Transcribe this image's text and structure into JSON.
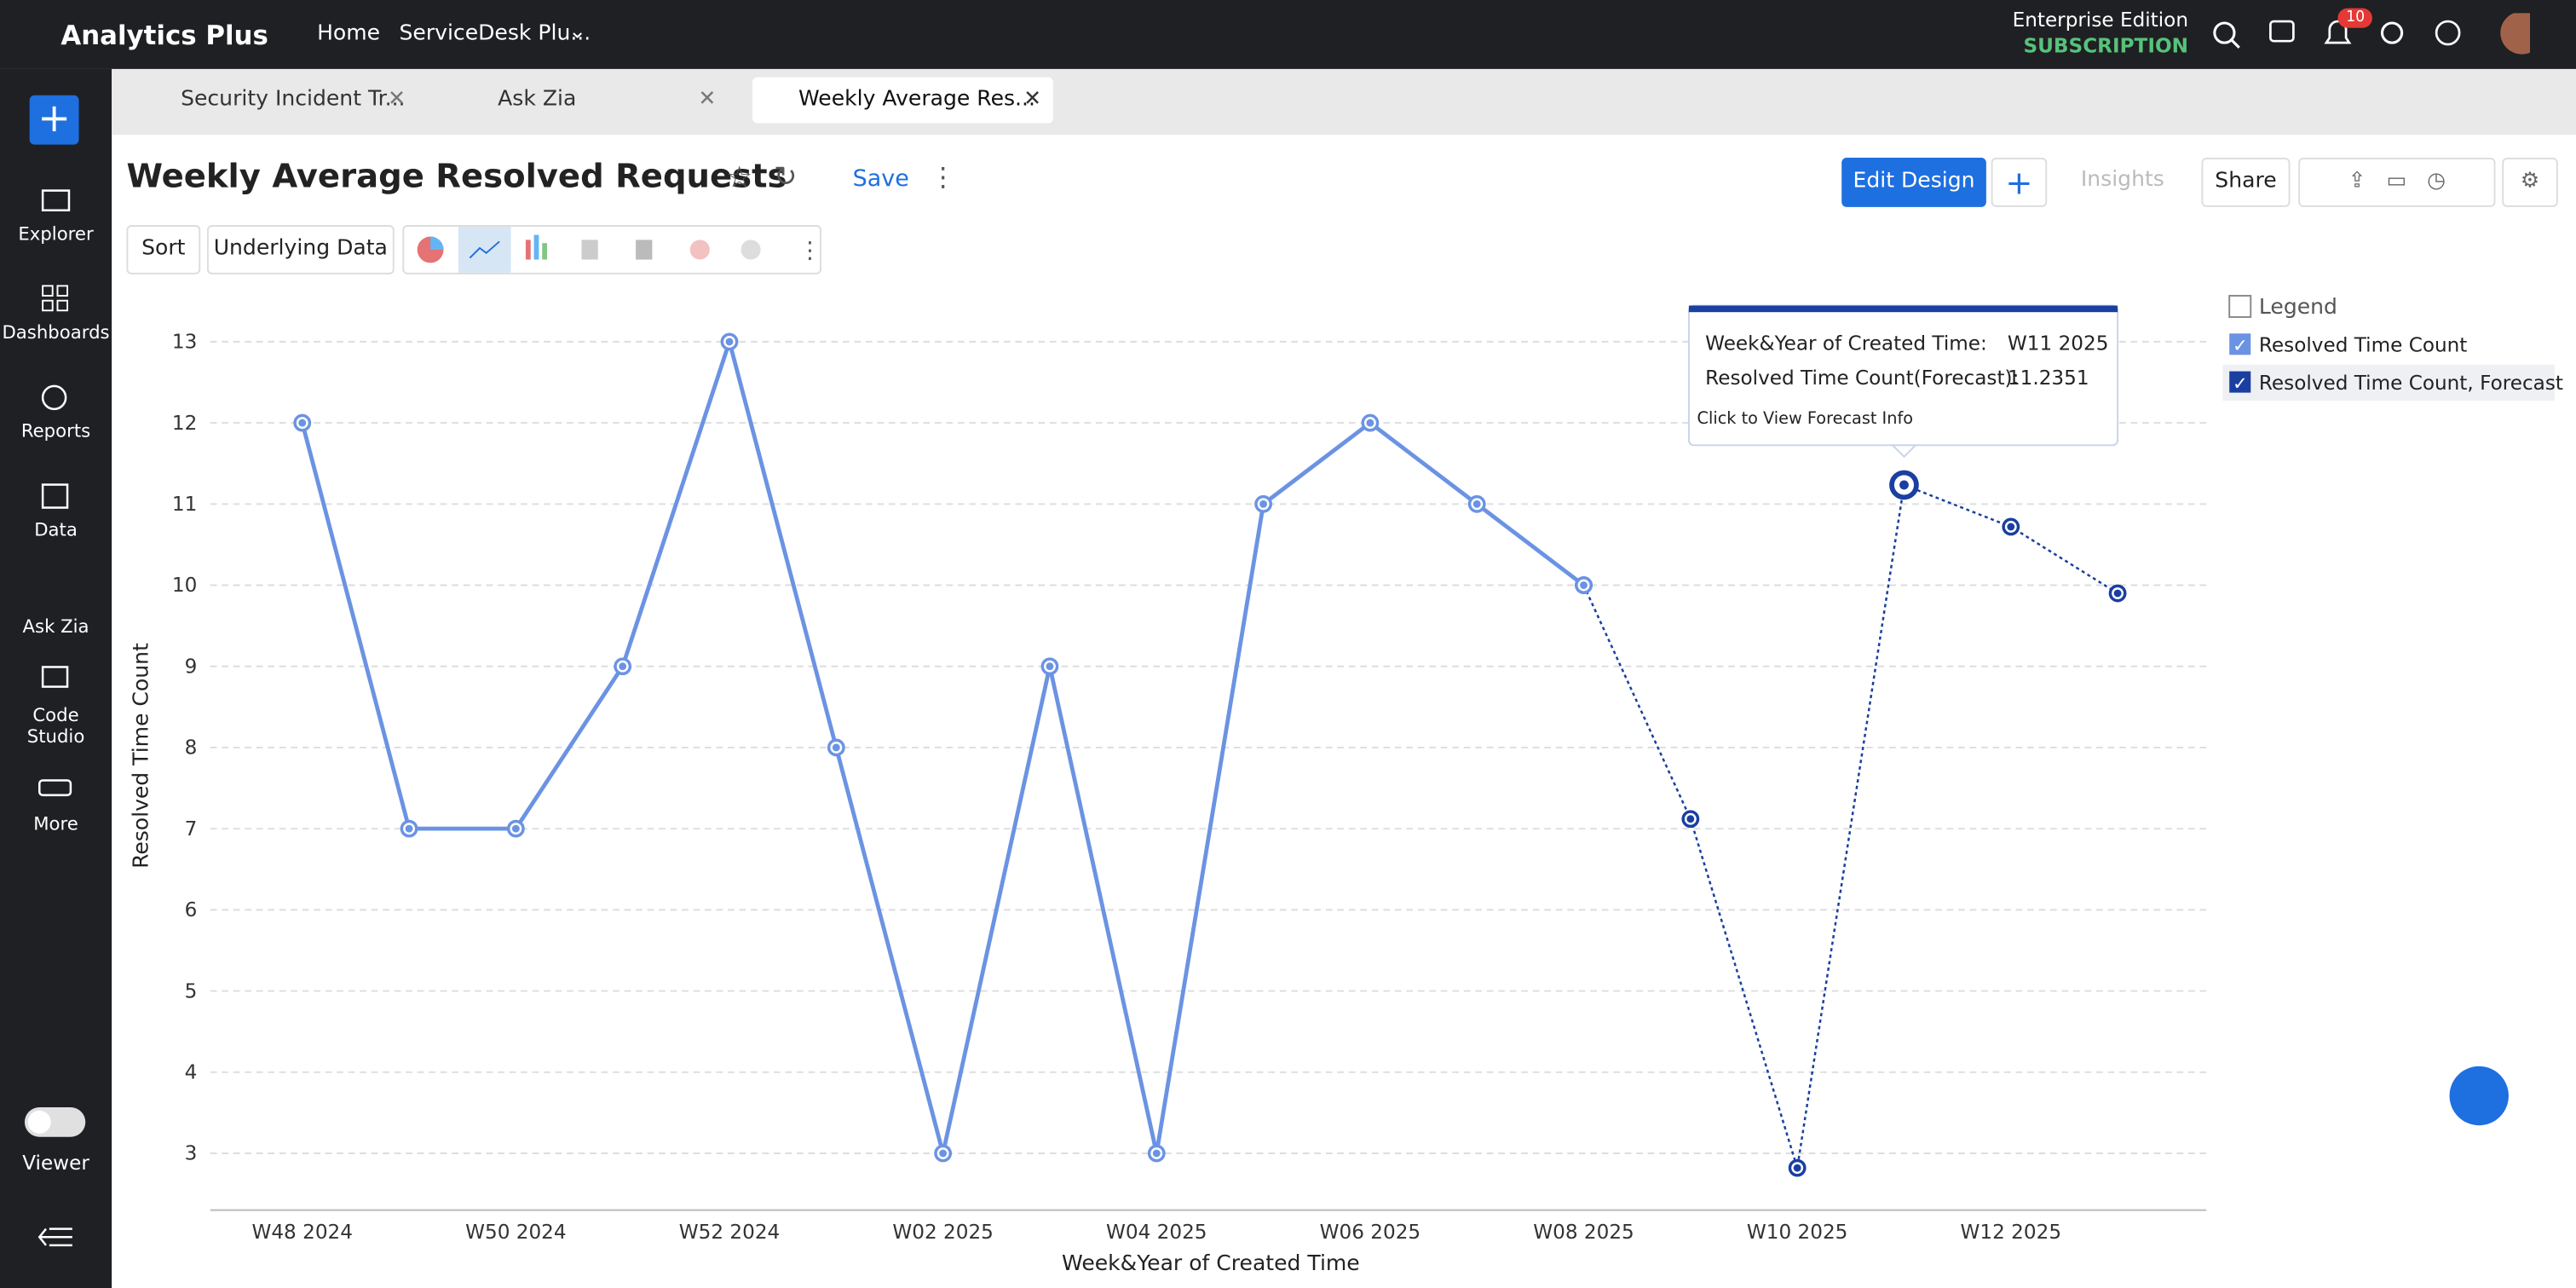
{
  "header": {
    "brand": "Analytics Plus",
    "nav": [
      "Home",
      "ServiceDesk Plu..."
    ],
    "edition": "Enterprise Edition",
    "subscription": "SUBSCRIPTION",
    "notifications": 10
  },
  "sidebar": {
    "items": [
      "Explorer",
      "Dashboards",
      "Reports",
      "Data",
      "Ask Zia",
      "Code Studio",
      "More"
    ],
    "toggle": "Viewer"
  },
  "tabs": [
    "Security Incident Tr...",
    "Ask Zia",
    "Weekly Average Res..."
  ],
  "toolbar": {
    "title": "Weekly Average Resolved Requests",
    "save": "Save",
    "edit": "Edit Design",
    "insights": "Insights",
    "share": "Share",
    "sort": "Sort",
    "underlying": "Underlying Data"
  },
  "chart_data": {
    "type": "line",
    "x_label": "Week&Year of Created Time",
    "y_label": "Resolved Time Count",
    "legend_title": "Legend",
    "categories": [
      "W48 2024",
      null,
      "W50 2024",
      null,
      "W52 2024",
      null,
      "W02 2025",
      null,
      "W04 2025",
      null,
      "W06 2025",
      null,
      "W08 2025",
      null,
      "W10 2025",
      null,
      "W12 2025",
      null
    ],
    "series": [
      {
        "name": "Resolved Time Count",
        "color": "#6b93e3",
        "values": [
          12,
          7,
          7,
          9,
          13,
          8,
          3,
          9,
          3,
          11,
          12,
          11,
          10,
          null,
          null,
          null,
          null,
          null
        ]
      },
      {
        "name": "Resolved Time Count, Forecast",
        "color": "#1a3fa0",
        "values": [
          null,
          null,
          null,
          null,
          null,
          null,
          null,
          null,
          null,
          null,
          null,
          null,
          10,
          7.12,
          2.82,
          11.2351,
          10.72,
          9.9
        ]
      }
    ],
    "ylim": [
      2.3,
      13.5
    ],
    "yticks": [
      3,
      4,
      5,
      6,
      7,
      8,
      9,
      10,
      11,
      12,
      13
    ],
    "grid": true,
    "tooltip": {
      "x_name": "Week&Year of Created Time:",
      "x_value": "W11 2025",
      "y_name": "Resolved Time Count(Forecast):",
      "footer": "Click to View Forecast Info"
    }
  }
}
